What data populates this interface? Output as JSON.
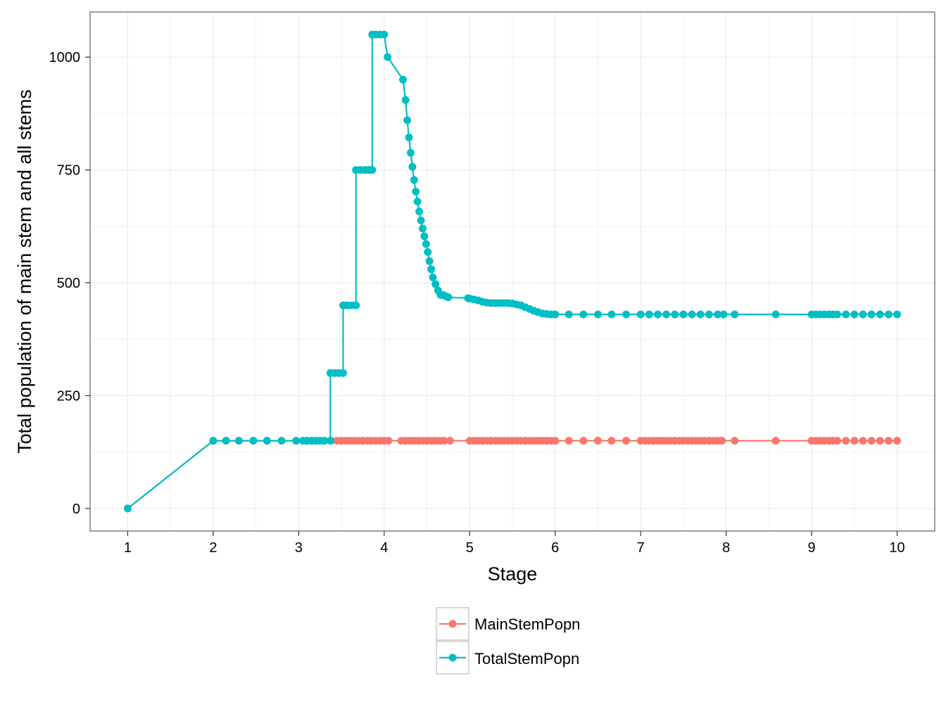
{
  "chart_data": {
    "type": "line",
    "xlabel": "Stage",
    "ylabel": "Total population of main stem and all stems",
    "xlim": [
      0.56,
      10.44
    ],
    "ylim": [
      -50,
      1100
    ],
    "x_ticks": [
      1,
      2,
      3,
      4,
      5,
      6,
      7,
      8,
      9,
      10
    ],
    "y_ticks": [
      0,
      250,
      500,
      750,
      1000
    ],
    "x_tick_labels": [
      "1",
      "2",
      "3",
      "4",
      "5",
      "6",
      "7",
      "8",
      "9",
      "10"
    ],
    "y_tick_labels": [
      "0",
      "250",
      "500",
      "750",
      "1000"
    ],
    "grid": true,
    "legend_position": "bottom",
    "series": [
      {
        "name": "MainStemPopn",
        "color": "#F8766D",
        "x": [
          1,
          2,
          2.15,
          2.3,
          2.47,
          2.63,
          2.8,
          2.97,
          3.05,
          3.1,
          3.15,
          3.2,
          3.25,
          3.3,
          3.38,
          3.45,
          3.5,
          3.55,
          3.6,
          3.65,
          3.7,
          3.75,
          3.8,
          3.85,
          3.9,
          3.95,
          4.0,
          4.05,
          4.2,
          4.25,
          4.3,
          4.35,
          4.4,
          4.45,
          4.5,
          4.55,
          4.6,
          4.65,
          4.7,
          4.77,
          5.0,
          5.05,
          5.1,
          5.15,
          5.2,
          5.25,
          5.3,
          5.35,
          5.4,
          5.45,
          5.5,
          5.55,
          5.6,
          5.65,
          5.7,
          5.75,
          5.8,
          5.85,
          5.9,
          5.95,
          6.0,
          6.16,
          6.33,
          6.5,
          6.66,
          6.83,
          7.0,
          7.05,
          7.1,
          7.15,
          7.2,
          7.25,
          7.3,
          7.35,
          7.4,
          7.45,
          7.5,
          7.55,
          7.6,
          7.65,
          7.7,
          7.75,
          7.8,
          7.85,
          7.9,
          7.95,
          8.1,
          8.58,
          9.0,
          9.05,
          9.1,
          9.15,
          9.2,
          9.25,
          9.3,
          9.4,
          9.5,
          9.6,
          9.7,
          9.8,
          9.9,
          10.0
        ],
        "y": [
          0,
          150,
          150,
          150,
          150,
          150,
          150,
          150,
          150,
          150,
          150,
          150,
          150,
          150,
          150,
          150,
          150,
          150,
          150,
          150,
          150,
          150,
          150,
          150,
          150,
          150,
          150,
          150,
          150,
          150,
          150,
          150,
          150,
          150,
          150,
          150,
          150,
          150,
          150,
          150,
          150,
          150,
          150,
          150,
          150,
          150,
          150,
          150,
          150,
          150,
          150,
          150,
          150,
          150,
          150,
          150,
          150,
          150,
          150,
          150,
          150,
          150,
          150,
          150,
          150,
          150,
          150,
          150,
          150,
          150,
          150,
          150,
          150,
          150,
          150,
          150,
          150,
          150,
          150,
          150,
          150,
          150,
          150,
          150,
          150,
          150,
          150,
          150,
          150,
          150,
          150,
          150,
          150,
          150,
          150,
          150,
          150,
          150,
          150,
          150,
          150,
          150
        ]
      },
      {
        "name": "TotalStemPopn",
        "color": "#00BFC4",
        "x": [
          1,
          2,
          2.15,
          2.3,
          2.47,
          2.63,
          2.8,
          2.97,
          3.05,
          3.1,
          3.15,
          3.2,
          3.25,
          3.3,
          3.37,
          3.37,
          3.42,
          3.47,
          3.52,
          3.52,
          3.57,
          3.62,
          3.67,
          3.67,
          3.72,
          3.77,
          3.82,
          3.86,
          3.86,
          3.9,
          3.95,
          4.0,
          4.04,
          4.22,
          4.25,
          4.27,
          4.29,
          4.31,
          4.33,
          4.35,
          4.37,
          4.39,
          4.41,
          4.43,
          4.45,
          4.47,
          4.49,
          4.51,
          4.53,
          4.55,
          4.57,
          4.6,
          4.63,
          4.66,
          4.69,
          4.72,
          4.75,
          4.98,
          5.0,
          5.05,
          5.1,
          5.15,
          5.2,
          5.25,
          5.3,
          5.35,
          5.4,
          5.45,
          5.5,
          5.55,
          5.6,
          5.65,
          5.7,
          5.75,
          5.8,
          5.85,
          5.9,
          5.95,
          6.0,
          6.16,
          6.33,
          6.5,
          6.66,
          6.83,
          7.0,
          7.1,
          7.2,
          7.3,
          7.4,
          7.5,
          7.6,
          7.7,
          7.8,
          7.9,
          7.97,
          8.1,
          8.58,
          9.0,
          9.05,
          9.1,
          9.15,
          9.2,
          9.25,
          9.3,
          9.4,
          9.5,
          9.6,
          9.7,
          9.8,
          9.9,
          10.0
        ],
        "y": [
          0,
          150,
          150,
          150,
          150,
          150,
          150,
          150,
          150,
          150,
          150,
          150,
          150,
          150,
          150,
          300,
          300,
          300,
          300,
          450,
          450,
          450,
          450,
          750,
          750,
          750,
          750,
          750,
          1050,
          1050,
          1050,
          1050,
          1000,
          950,
          905,
          860,
          822,
          788,
          757,
          728,
          702,
          680,
          658,
          638,
          620,
          603,
          586,
          568,
          548,
          530,
          512,
          497,
          483,
          473,
          473,
          470,
          468,
          466,
          465,
          463,
          461,
          458,
          456,
          455,
          455,
          455,
          455,
          455,
          454,
          452,
          450,
          446,
          442,
          438,
          435,
          432,
          431,
          430,
          430,
          430,
          430,
          430,
          430,
          430,
          430,
          430,
          430,
          430,
          430,
          430,
          430,
          430,
          430,
          430,
          430,
          430,
          430,
          430,
          430,
          430,
          430,
          430,
          430,
          430,
          430,
          430,
          430,
          430,
          430,
          430,
          430
        ]
      }
    ]
  }
}
